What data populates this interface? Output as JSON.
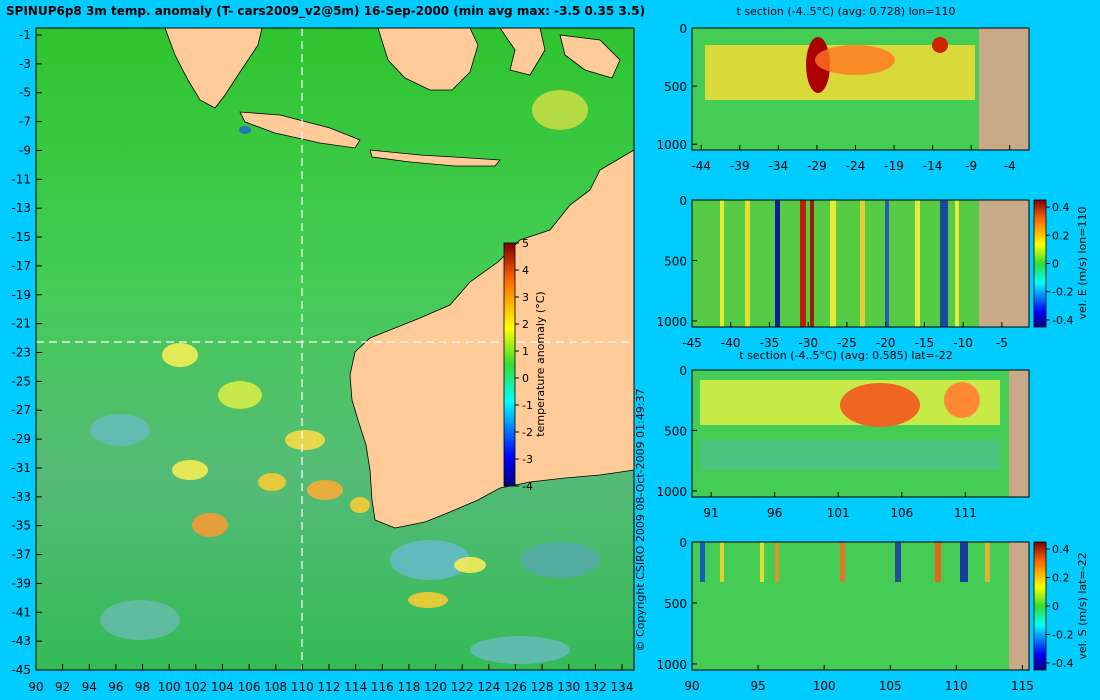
{
  "main_title": "SPINUP6p8 3m temp. anomaly (T- cars2009_v2@5m) 16-Sep-2000 (min avg max: -3.5 0.35 3.5)",
  "copyright": "© Copyright CSIRO 2009   08-Oct-2009 01:49:37",
  "map": {
    "lat_ticks": [
      "-1",
      "-3",
      "-5",
      "-7",
      "-9",
      "-11",
      "-13",
      "-15",
      "-17",
      "-19",
      "-21",
      "-23",
      "-25",
      "-27",
      "-29",
      "-31",
      "-33",
      "-35",
      "-37",
      "-39",
      "-41",
      "-43",
      "-45"
    ],
    "lon_ticks": [
      "90",
      "92",
      "94",
      "96",
      "98",
      "100",
      "102",
      "104",
      "106",
      "108",
      "110",
      "112",
      "114",
      "116",
      "118",
      "120",
      "122",
      "124",
      "126",
      "128",
      "130",
      "132",
      "134"
    ],
    "crosshair_lon": 110,
    "crosshair_lat": -22
  },
  "colorbar_main": {
    "label": "temperature anomaly (°C)",
    "ticks": [
      "5",
      "4",
      "3",
      "2",
      "1",
      "0",
      "-1",
      "-2",
      "-3",
      "-4"
    ]
  },
  "panels": {
    "t_lon": {
      "title": "t section (-4..5°C) (avg: 0.728) lon=110",
      "y_ticks": [
        "0",
        "500",
        "1000"
      ],
      "x_ticks": [
        "-44",
        "-39",
        "-34",
        "-29",
        "-24",
        "-19",
        "-14",
        "-9",
        "-4"
      ]
    },
    "vel_e": {
      "y_ticks": [
        "0",
        "500",
        "1000"
      ],
      "x_ticks": [
        "-45",
        "-40",
        "-35",
        "-30",
        "-25",
        "-20",
        "-15",
        "-10",
        "-5"
      ],
      "cbar_label": "vel. E (m/s) lon=110",
      "cbar_ticks": [
        "0.4",
        "0.2",
        "0",
        "-0.2",
        "-0.4"
      ]
    },
    "t_lat": {
      "title": "t section (-4..5°C) (avg: 0.585) lat=-22",
      "y_ticks": [
        "0",
        "500",
        "1000"
      ],
      "x_ticks": [
        "91",
        "96",
        "101",
        "106",
        "111"
      ]
    },
    "vel_s": {
      "y_ticks": [
        "0",
        "500",
        "1000"
      ],
      "x_ticks": [
        "90",
        "95",
        "100",
        "105",
        "110",
        "115"
      ],
      "cbar_label": "vel. S (m/s) lat=-22",
      "cbar_ticks": [
        "0.4",
        "0.2",
        "0",
        "-0.2",
        "-0.4"
      ]
    }
  },
  "colors": {
    "background": "#00ccff",
    "ocean_base": "#33cc33",
    "land": "#ffcc99",
    "section_land": "#c8aa88"
  }
}
